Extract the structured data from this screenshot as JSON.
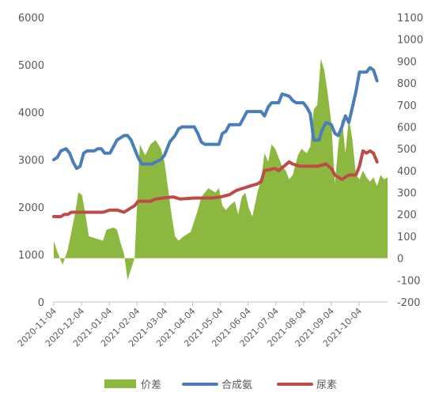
{
  "chart_data": {
    "type": "line",
    "x_labels": [
      "2020-11-04",
      "2020-12-04",
      "2021-01-04",
      "2021-02-04",
      "2021-03-04",
      "2021-04-04",
      "2021-05-04",
      "2021-06-04",
      "2021-07-04",
      "2021-08-04",
      "2021-09-04",
      "2021-10-04"
    ],
    "y_left": {
      "ticks": [
        0,
        1000,
        2000,
        3000,
        4000,
        5000,
        6000
      ],
      "range": [
        0,
        6000
      ]
    },
    "y_right": {
      "ticks": [
        -200,
        -100,
        0,
        100,
        200,
        300,
        400,
        500,
        600,
        700,
        800,
        900,
        1000,
        1100
      ],
      "range": [
        -200,
        1100
      ]
    },
    "legend_position": "bottom",
    "colors": {
      "spread": "#8db83f",
      "ammonia": "#4a7ebb",
      "urea": "#be4b48"
    },
    "series": [
      {
        "name": "价差",
        "type": "area",
        "axis": "right",
        "points": [
          [
            0,
            80
          ],
          [
            2,
            30
          ],
          [
            5,
            -30
          ],
          [
            8,
            40
          ],
          [
            10,
            120
          ],
          [
            12,
            200
          ],
          [
            14,
            300
          ],
          [
            16,
            290
          ],
          [
            18,
            200
          ],
          [
            20,
            100
          ],
          [
            24,
            90
          ],
          [
            28,
            80
          ],
          [
            30,
            130
          ],
          [
            34,
            140
          ],
          [
            36,
            130
          ],
          [
            38,
            70
          ],
          [
            40,
            20
          ],
          [
            42,
            -100
          ],
          [
            44,
            -50
          ],
          [
            46,
            0
          ],
          [
            49,
            520
          ],
          [
            52,
            470
          ],
          [
            55,
            520
          ],
          [
            58,
            540
          ],
          [
            61,
            500
          ],
          [
            63,
            440
          ],
          [
            65,
            320
          ],
          [
            67,
            200
          ],
          [
            69,
            100
          ],
          [
            71,
            80
          ],
          [
            74,
            100
          ],
          [
            78,
            120
          ],
          [
            82,
            220
          ],
          [
            84,
            280
          ],
          [
            88,
            320
          ],
          [
            92,
            300
          ],
          [
            94,
            320
          ],
          [
            96,
            240
          ],
          [
            98,
            220
          ],
          [
            100,
            240
          ],
          [
            103,
            260
          ],
          [
            105,
            200
          ],
          [
            107,
            280
          ],
          [
            109,
            300
          ],
          [
            111,
            230
          ],
          [
            113,
            190
          ],
          [
            116,
            300
          ],
          [
            118,
            360
          ],
          [
            120,
            480
          ],
          [
            122,
            440
          ],
          [
            124,
            520
          ],
          [
            126,
            500
          ],
          [
            128,
            460
          ],
          [
            130,
            420
          ],
          [
            132,
            400
          ],
          [
            134,
            360
          ],
          [
            136,
            380
          ],
          [
            139,
            470
          ],
          [
            141,
            500
          ],
          [
            144,
            480
          ],
          [
            146,
            510
          ],
          [
            148,
            680
          ],
          [
            150,
            700
          ],
          [
            152,
            910
          ],
          [
            154,
            860
          ],
          [
            156,
            750
          ],
          [
            158,
            620
          ],
          [
            160,
            340
          ],
          [
            162,
            520
          ],
          [
            164,
            640
          ],
          [
            166,
            480
          ],
          [
            168,
            640
          ],
          [
            170,
            540
          ],
          [
            172,
            380
          ],
          [
            174,
            360
          ],
          [
            176,
            400
          ],
          [
            178,
            370
          ],
          [
            180,
            350
          ],
          [
            182,
            370
          ],
          [
            184,
            330
          ],
          [
            186,
            380
          ],
          [
            188,
            360
          ],
          [
            190,
            370
          ]
        ]
      },
      {
        "name": "合成氨",
        "type": "line",
        "axis": "right",
        "points": [
          [
            0,
            450
          ],
          [
            2,
            460
          ],
          [
            4,
            490
          ],
          [
            7,
            500
          ],
          [
            9,
            480
          ],
          [
            11,
            440
          ],
          [
            13,
            410
          ],
          [
            15,
            420
          ],
          [
            17,
            480
          ],
          [
            19,
            490
          ],
          [
            23,
            490
          ],
          [
            25,
            500
          ],
          [
            27,
            500
          ],
          [
            29,
            480
          ],
          [
            32,
            480
          ],
          [
            34,
            510
          ],
          [
            36,
            540
          ],
          [
            38,
            550
          ],
          [
            40,
            560
          ],
          [
            42,
            560
          ],
          [
            44,
            540
          ],
          [
            46,
            500
          ],
          [
            48,
            460
          ],
          [
            50,
            430
          ],
          [
            56,
            430
          ],
          [
            58,
            440
          ],
          [
            61,
            450
          ],
          [
            63,
            470
          ],
          [
            66,
            530
          ],
          [
            69,
            560
          ],
          [
            71,
            590
          ],
          [
            73,
            600
          ],
          [
            80,
            600
          ],
          [
            82,
            570
          ],
          [
            84,
            530
          ],
          [
            86,
            520
          ],
          [
            94,
            520
          ],
          [
            96,
            570
          ],
          [
            98,
            580
          ],
          [
            100,
            610
          ],
          [
            106,
            610
          ],
          [
            108,
            640
          ],
          [
            110,
            670
          ],
          [
            118,
            670
          ],
          [
            120,
            650
          ],
          [
            122,
            690
          ],
          [
            124,
            710
          ],
          [
            128,
            710
          ],
          [
            130,
            750
          ],
          [
            134,
            740
          ],
          [
            136,
            720
          ],
          [
            138,
            710
          ],
          [
            142,
            710
          ],
          [
            144,
            690
          ],
          [
            146,
            660
          ],
          [
            148,
            540
          ],
          [
            151,
            540
          ],
          [
            153,
            590
          ],
          [
            155,
            620
          ],
          [
            158,
            610
          ],
          [
            160,
            570
          ],
          [
            162,
            560
          ],
          [
            164,
            600
          ],
          [
            166,
            650
          ],
          [
            168,
            620
          ],
          [
            170,
            690
          ],
          [
            172,
            760
          ],
          [
            174,
            850
          ],
          [
            178,
            850
          ],
          [
            180,
            870
          ],
          [
            182,
            860
          ],
          [
            184,
            810
          ]
        ]
      },
      {
        "name": "尿素",
        "type": "line",
        "axis": "right",
        "points": [
          [
            0,
            190
          ],
          [
            4,
            190
          ],
          [
            6,
            200
          ],
          [
            8,
            200
          ],
          [
            10,
            210
          ],
          [
            20,
            210
          ],
          [
            24,
            210
          ],
          [
            28,
            210
          ],
          [
            32,
            220
          ],
          [
            36,
            220
          ],
          [
            40,
            210
          ],
          [
            42,
            220
          ],
          [
            46,
            240
          ],
          [
            48,
            260
          ],
          [
            55,
            260
          ],
          [
            58,
            270
          ],
          [
            62,
            275
          ],
          [
            68,
            280
          ],
          [
            72,
            270
          ],
          [
            80,
            275
          ],
          [
            90,
            275
          ],
          [
            95,
            280
          ],
          [
            100,
            290
          ],
          [
            104,
            310
          ],
          [
            108,
            320
          ],
          [
            112,
            330
          ],
          [
            116,
            340
          ],
          [
            118,
            350
          ],
          [
            120,
            400
          ],
          [
            126,
            410
          ],
          [
            128,
            400
          ],
          [
            131,
            420
          ],
          [
            134,
            440
          ],
          [
            136,
            430
          ],
          [
            140,
            420
          ],
          [
            144,
            420
          ],
          [
            150,
            420
          ],
          [
            155,
            430
          ],
          [
            158,
            410
          ],
          [
            160,
            380
          ],
          [
            162,
            370
          ],
          [
            164,
            360
          ],
          [
            168,
            380
          ],
          [
            172,
            380
          ],
          [
            174,
            420
          ],
          [
            176,
            490
          ],
          [
            178,
            480
          ],
          [
            180,
            490
          ],
          [
            182,
            480
          ],
          [
            184,
            440
          ]
        ]
      }
    ]
  }
}
